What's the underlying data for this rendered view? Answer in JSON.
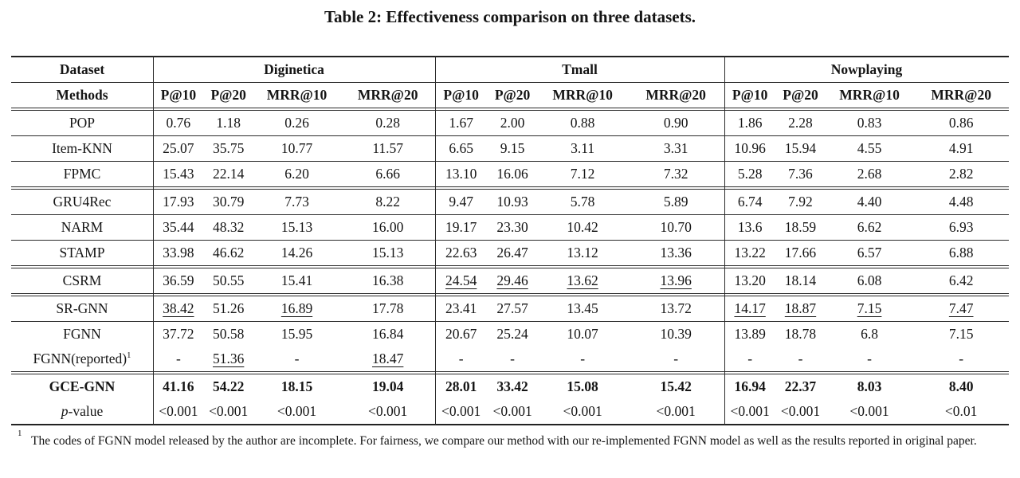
{
  "title": "Table 2: Effectiveness comparison on three datasets.",
  "colors": {
    "text": "#151515",
    "rule": "#2b2b2b",
    "background": "#ffffff"
  },
  "table": {
    "header": {
      "dataset_label": "Dataset",
      "methods_label": "Methods",
      "datasets": [
        "Diginetica",
        "Tmall",
        "Nowplaying"
      ],
      "metrics": [
        "P@10",
        "P@20",
        "MRR@10",
        "MRR@20"
      ]
    },
    "rows": [
      {
        "method": "POP",
        "values": [
          "0.76",
          "1.18",
          "0.26",
          "0.28",
          "1.67",
          "2.00",
          "0.88",
          "0.90",
          "1.86",
          "2.28",
          "0.83",
          "0.86"
        ],
        "sep_after": "single"
      },
      {
        "method": "Item-KNN",
        "values": [
          "25.07",
          "35.75",
          "10.77",
          "11.57",
          "6.65",
          "9.15",
          "3.11",
          "3.31",
          "10.96",
          "15.94",
          "4.55",
          "4.91"
        ],
        "sep_after": "single"
      },
      {
        "method": "FPMC",
        "values": [
          "15.43",
          "22.14",
          "6.20",
          "6.66",
          "13.10",
          "16.06",
          "7.12",
          "7.32",
          "5.28",
          "7.36",
          "2.68",
          "2.82"
        ],
        "sep_after": "double"
      },
      {
        "method": "GRU4Rec",
        "values": [
          "17.93",
          "30.79",
          "7.73",
          "8.22",
          "9.47",
          "10.93",
          "5.78",
          "5.89",
          "6.74",
          "7.92",
          "4.40",
          "4.48"
        ],
        "sep_after": "single"
      },
      {
        "method": "NARM",
        "values": [
          "35.44",
          "48.32",
          "15.13",
          "16.00",
          "19.17",
          "23.30",
          "10.42",
          "10.70",
          "13.6",
          "18.59",
          "6.62",
          "6.93"
        ],
        "sep_after": "single"
      },
      {
        "method": "STAMP",
        "values": [
          "33.98",
          "46.62",
          "14.26",
          "15.13",
          "22.63",
          "26.47",
          "13.12",
          "13.36",
          "13.22",
          "17.66",
          "6.57",
          "6.88"
        ],
        "sep_after": "double"
      },
      {
        "method": "CSRM",
        "values": [
          "36.59",
          "50.55",
          "15.41",
          "16.38",
          "24.54",
          "29.46",
          "13.62",
          "13.96",
          "13.20",
          "18.14",
          "6.08",
          "6.42"
        ],
        "underline": [
          4,
          5,
          6,
          7
        ],
        "sep_after": "double"
      },
      {
        "method": "SR-GNN",
        "values": [
          "38.42",
          "51.26",
          "16.89",
          "17.78",
          "23.41",
          "27.57",
          "13.45",
          "13.72",
          "14.17",
          "18.87",
          "7.15",
          "7.47"
        ],
        "underline": [
          0,
          2,
          8,
          9,
          10,
          11
        ],
        "sep_after": "single"
      },
      {
        "method": "FGNN",
        "values": [
          "37.72",
          "50.58",
          "15.95",
          "16.84",
          "20.67",
          "25.24",
          "10.07",
          "10.39",
          "13.89",
          "18.78",
          "6.8",
          "7.15"
        ],
        "sep_after": "none"
      },
      {
        "method": "FGNN(reported)",
        "method_sup": "1",
        "values": [
          "-",
          "51.36",
          "-",
          "18.47",
          "-",
          "-",
          "-",
          "-",
          "-",
          "-",
          "-",
          "-"
        ],
        "underline": [
          1,
          3
        ],
        "sep_after": "double"
      },
      {
        "method": "GCE-GNN",
        "bold": true,
        "values": [
          "41.16",
          "54.22",
          "18.15",
          "19.04",
          "28.01",
          "33.42",
          "15.08",
          "15.42",
          "16.94",
          "22.37",
          "8.03",
          "8.40"
        ],
        "sep_after": "none"
      },
      {
        "method": "p-value",
        "method_italic_chars": 1,
        "values": [
          "<0.001",
          "<0.001",
          "<0.001",
          "<0.001",
          "<0.001",
          "<0.001",
          "<0.001",
          "<0.001",
          "<0.001",
          "<0.001",
          "<0.001",
          "<0.01"
        ],
        "sep_after": "end"
      }
    ]
  },
  "footnote": {
    "marker": "1",
    "text": "The codes of FGNN model released by the author are incomplete. For fairness, we compare our method with our re-implemented FGNN model as well as the results reported in original paper."
  }
}
